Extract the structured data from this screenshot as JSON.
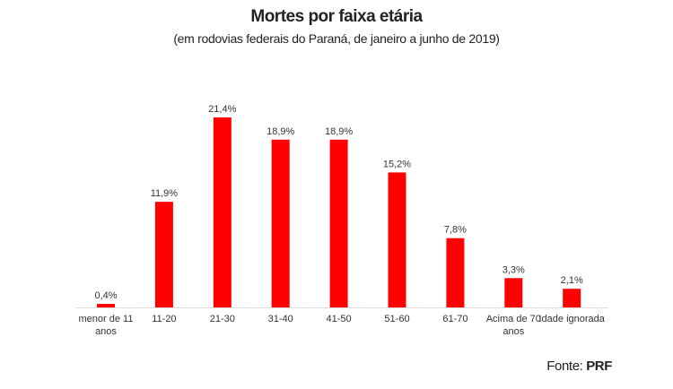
{
  "chart_data": {
    "type": "bar",
    "title": "Mortes por faixa etária",
    "subtitle": "(em rodovias federais do Paraná, de janeiro a junho de 2019)",
    "categories": [
      "menor de 11 anos",
      "11-20",
      "21-30",
      "31-40",
      "41-50",
      "51-60",
      "61-70",
      "Acima de 70 anos",
      "Idade ignorada"
    ],
    "values": [
      0.4,
      11.9,
      21.4,
      18.9,
      18.9,
      15.2,
      7.8,
      3.3,
      2.1
    ],
    "data_labels": [
      "0,4%",
      "11,9%",
      "21,4%",
      "18,9%",
      "18,9%",
      "15,2%",
      "7,8%",
      "3,3%",
      "2,1%"
    ],
    "xlabel": "",
    "ylabel": "",
    "ylim": [
      0,
      22
    ],
    "grid": false,
    "bar_color": "#ff0000",
    "source_label": "Fonte:",
    "source_value": "PRF"
  }
}
